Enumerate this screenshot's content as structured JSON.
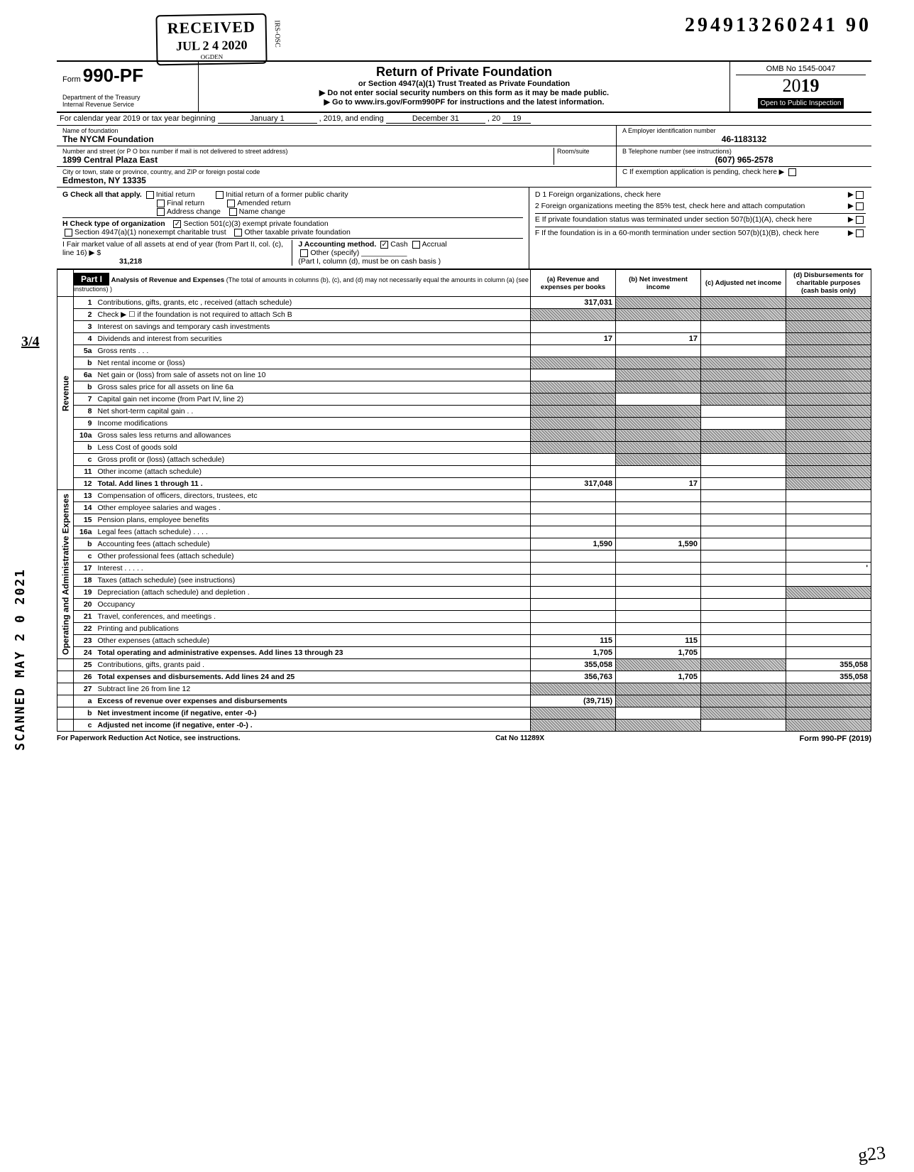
{
  "dln": "294913260241 90",
  "stamp": {
    "label": "RECEIVED",
    "date": "JUL 2 4 2020",
    "office": "OGDEN",
    "tag": "IRS-OSC"
  },
  "header": {
    "form_prefix": "Form",
    "form_number": "990-PF",
    "dept": "Department of the Treasury",
    "irs": "Internal Revenue Service",
    "title": "Return of Private Foundation",
    "subtitle": "or Section 4947(a)(1) Trust Treated as Private Foundation",
    "warn": "▶ Do not enter social security numbers on this form as it may be made public.",
    "goto": "▶ Go to www.irs.gov/Form990PF for instructions and the latest information.",
    "omb": "OMB No 1545-0047",
    "year_light": "20",
    "year_bold": "19",
    "open": "Open to Public Inspection"
  },
  "cal": {
    "prefix": "For calendar year 2019 or tax year beginning",
    "begin": "January 1",
    "mid": ", 2019, and ending",
    "end_month": "December 31",
    "end_yr_prefix": ", 20",
    "end_yr": "19"
  },
  "entity": {
    "name_label": "Name of foundation",
    "name": "The NYCM Foundation",
    "ein_label": "A  Employer identification number",
    "ein": "46-1183132",
    "addr_label": "Number and street (or P O  box number if mail is not delivered to street address)",
    "room_label": "Room/suite",
    "addr": "1899 Central Plaza East",
    "tel_label": "B  Telephone number (see instructions)",
    "tel": "(607) 965-2578",
    "city_label": "City or town, state or province, country, and ZIP or foreign postal code",
    "city": "Edmeston, NY 13335",
    "c_label": "C  If exemption application is pending, check here ▶"
  },
  "checks": {
    "G": "G  Check all that apply.",
    "g_items": [
      "Initial return",
      "Final return",
      "Address change",
      "Initial return of a former public charity",
      "Amended return",
      "Name change"
    ],
    "H": "H  Check type of organization",
    "h_501": "Section 501(c)(3) exempt private foundation",
    "h_4947": "Section 4947(a)(1) nonexempt charitable trust",
    "h_other": "Other taxable private foundation",
    "I": "I   Fair market value of all assets at end of year  (from Part II, col. (c), line 16) ▶  $",
    "I_val": "31,218",
    "J": "J  Accounting method.",
    "J_cash": "Cash",
    "J_accrual": "Accrual",
    "J_other": "Other (specify)",
    "J_note": "(Part I, column (d), must be on cash basis )",
    "D1": "D  1  Foreign organizations, check here",
    "D2": "2  Foreign organizations meeting the 85% test, check here and attach computation",
    "E": "E  If private foundation status was terminated under section 507(b)(1)(A), check here",
    "F": "F  If the foundation is in a 60-month termination under section 507(b)(1)(B), check here"
  },
  "part1": {
    "label": "Part I",
    "title": "Analysis of Revenue and Expenses",
    "note": "(The total of amounts in columns (b), (c), and (d) may not necessarily equal the amounts in column (a) (see instructions) )",
    "cols": [
      "(a) Revenue and expenses per books",
      "(b) Net investment income",
      "(c) Adjusted net income",
      "(d) Disbursements for charitable purposes (cash basis only)"
    ]
  },
  "sections": {
    "revenue": "Revenue",
    "opadmin": "Operating and Administrative Expenses"
  },
  "rows": [
    {
      "n": "1",
      "d": "Contributions, gifts, grants, etc , received (attach schedule)",
      "a": "317,031",
      "b": "shade",
      "c": "shade",
      "e": "shade"
    },
    {
      "n": "2",
      "d": "Check ▶ ☐ if the foundation is not required to attach Sch B",
      "a": "shade",
      "b": "shade",
      "c": "shade",
      "e": "shade"
    },
    {
      "n": "3",
      "d": "Interest on savings and temporary cash investments",
      "a": "",
      "b": "",
      "c": "",
      "e": "shade"
    },
    {
      "n": "4",
      "d": "Dividends and interest from securities",
      "a": "17",
      "b": "17",
      "c": "",
      "e": "shade"
    },
    {
      "n": "5a",
      "d": "Gross rents   .    .    .",
      "a": "",
      "b": "",
      "c": "",
      "e": "shade"
    },
    {
      "n": "b",
      "d": "Net rental income or (loss)",
      "a": "shade",
      "b": "shade",
      "c": "shade",
      "e": "shade"
    },
    {
      "n": "6a",
      "d": "Net gain or (loss) from sale of assets not on line 10",
      "a": "",
      "b": "shade",
      "c": "shade",
      "e": "shade"
    },
    {
      "n": "b",
      "d": "Gross sales price for all assets on line 6a",
      "a": "shade",
      "b": "shade",
      "c": "shade",
      "e": "shade"
    },
    {
      "n": "7",
      "d": "Capital gain net income (from Part IV, line 2)",
      "a": "shade",
      "b": "",
      "c": "shade",
      "e": "shade"
    },
    {
      "n": "8",
      "d": "Net short-term capital gain    .    .",
      "a": "shade",
      "b": "shade",
      "c": "",
      "e": "shade"
    },
    {
      "n": "9",
      "d": "Income modifications",
      "a": "shade",
      "b": "shade",
      "c": "",
      "e": "shade"
    },
    {
      "n": "10a",
      "d": "Gross sales less returns and allowances",
      "a": "shade",
      "b": "shade",
      "c": "shade",
      "e": "shade"
    },
    {
      "n": "b",
      "d": "Less  Cost of goods sold",
      "a": "shade",
      "b": "shade",
      "c": "shade",
      "e": "shade"
    },
    {
      "n": "c",
      "d": "Gross profit or (loss) (attach schedule)",
      "a": "",
      "b": "shade",
      "c": "",
      "e": "shade"
    },
    {
      "n": "11",
      "d": "Other income (attach schedule)",
      "a": "",
      "b": "",
      "c": "",
      "e": "shade"
    },
    {
      "n": "12",
      "d": "Total. Add lines 1 through 11   .",
      "a": "317,048",
      "b": "17",
      "c": "",
      "e": "shade",
      "bold": true
    },
    {
      "n": "13",
      "d": "Compensation of officers, directors, trustees, etc",
      "a": "",
      "b": "",
      "c": "",
      "e": ""
    },
    {
      "n": "14",
      "d": "Other employee salaries and wages    .",
      "a": "",
      "b": "",
      "c": "",
      "e": ""
    },
    {
      "n": "15",
      "d": "Pension plans, employee benefits",
      "a": "",
      "b": "",
      "c": "",
      "e": ""
    },
    {
      "n": "16a",
      "d": "Legal fees (attach schedule)    .        .    .    .",
      "a": "",
      "b": "",
      "c": "",
      "e": ""
    },
    {
      "n": "b",
      "d": "Accounting fees (attach schedule)",
      "a": "1,590",
      "b": "1,590",
      "c": "",
      "e": ""
    },
    {
      "n": "c",
      "d": "Other professional fees (attach schedule)",
      "a": "",
      "b": "",
      "c": "",
      "e": ""
    },
    {
      "n": "17",
      "d": "Interest        .    .        .    .    .",
      "a": "",
      "b": "",
      "c": "",
      "e": "'"
    },
    {
      "n": "18",
      "d": "Taxes (attach schedule) (see instructions)",
      "a": "",
      "b": "",
      "c": "",
      "e": ""
    },
    {
      "n": "19",
      "d": "Depreciation (attach schedule) and depletion    .",
      "a": "",
      "b": "",
      "c": "",
      "e": "shade"
    },
    {
      "n": "20",
      "d": "Occupancy",
      "a": "",
      "b": "",
      "c": "",
      "e": ""
    },
    {
      "n": "21",
      "d": "Travel, conferences, and meetings    .",
      "a": "",
      "b": "",
      "c": "",
      "e": ""
    },
    {
      "n": "22",
      "d": "Printing and publications",
      "a": "",
      "b": "",
      "c": "",
      "e": ""
    },
    {
      "n": "23",
      "d": "Other expenses (attach schedule)",
      "a": "115",
      "b": "115",
      "c": "",
      "e": ""
    },
    {
      "n": "24",
      "d": "Total operating and administrative expenses. Add lines 13 through 23",
      "a": "1,705",
      "b": "1,705",
      "c": "",
      "e": "",
      "bold": true
    },
    {
      "n": "25",
      "d": "Contributions, gifts, grants paid    .",
      "a": "355,058",
      "b": "shade",
      "c": "shade",
      "e": "355,058"
    },
    {
      "n": "26",
      "d": "Total expenses and disbursements. Add lines 24 and 25",
      "a": "356,763",
      "b": "1,705",
      "c": "",
      "e": "355,058",
      "bold": true
    },
    {
      "n": "27",
      "d": "Subtract line 26 from line 12",
      "a": "shade",
      "b": "shade",
      "c": "shade",
      "e": "shade"
    },
    {
      "n": "a",
      "d": "Excess of revenue over expenses and disbursements",
      "a": "(39,715)",
      "b": "shade",
      "c": "shade",
      "e": "shade",
      "bold": true
    },
    {
      "n": "b",
      "d": "Net investment income (if negative, enter -0-)",
      "a": "shade",
      "b": "",
      "c": "shade",
      "e": "shade",
      "bold": true
    },
    {
      "n": "c",
      "d": "Adjusted net income (if negative, enter -0-)   .",
      "a": "shade",
      "b": "shade",
      "c": "",
      "e": "shade",
      "bold": true
    }
  ],
  "footer": {
    "left": "For Paperwork Reduction Act Notice, see instructions.",
    "mid": "Cat No  11289X",
    "right": "Form 990-PF (2019)"
  },
  "side_scanned": "SCANNED MAY 2 0 2021",
  "side_frac": "3/4",
  "initial": "g23"
}
